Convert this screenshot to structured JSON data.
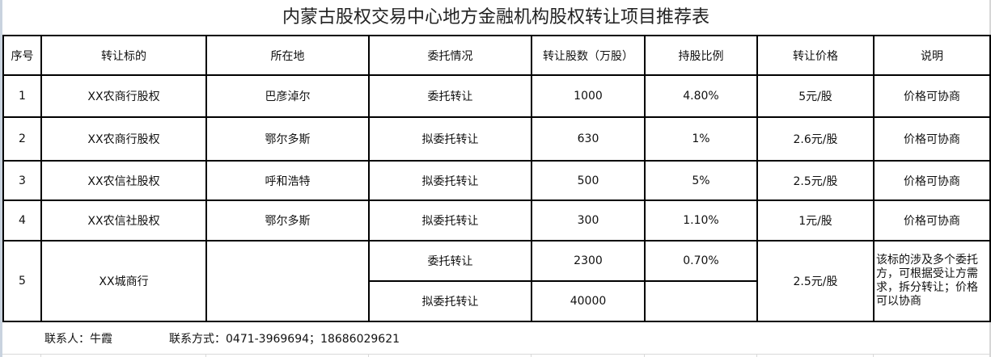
{
  "title": "内蒙古股权交易中心地方金融机构股权转让项目推荐表",
  "headers": [
    "序号",
    "转让标的",
    "所在地",
    "委托情况",
    "转让股数（万股）",
    "持股比例",
    "转让价格",
    "说明"
  ],
  "rows": [
    {
      "no": "1",
      "target": "XX农商行股权",
      "location": "巴彦淖尔",
      "status": "委托转让",
      "shares": "1000",
      "ratio": "4.80%",
      "price": "5元/股",
      "note": "价格可协商"
    },
    {
      "no": "2",
      "target": "XX农商行股权",
      "location": "鄂尔多斯",
      "status": "拟委托转让",
      "shares": "630",
      "ratio": "1%",
      "price": "2.6元/股",
      "note": "价格可协商"
    },
    {
      "no": "3",
      "target": "XX农信社股权",
      "location": "呼和浩特",
      "status": "拟委托转让",
      "shares": "500",
      "ratio": "5%",
      "price": "2.5元/股",
      "note": "价格可协商"
    },
    {
      "no": "4",
      "target": "XX农信社股权",
      "location": "鄂尔多斯",
      "status": "拟委托转让",
      "shares": "300",
      "ratio": "1.10%",
      "price": "1元/股",
      "note": "价格可协商"
    }
  ],
  "row5": {
    "no": "5",
    "target": "XX城商行",
    "location": "",
    "sub": [
      {
        "status": "委托转让",
        "shares": "2300",
        "ratio": "0.70%"
      },
      {
        "status": "拟委托转让",
        "shares": "40000",
        "ratio": ""
      }
    ],
    "price": "2.5元/股",
    "note": "该标的涉及多个委托方，可根据受让方需求，拆分转让；价格可以协商"
  },
  "footer": {
    "contact_person": "联系人：牛霞",
    "contact_info": "联系方式：0471-3969694；18686029621"
  }
}
